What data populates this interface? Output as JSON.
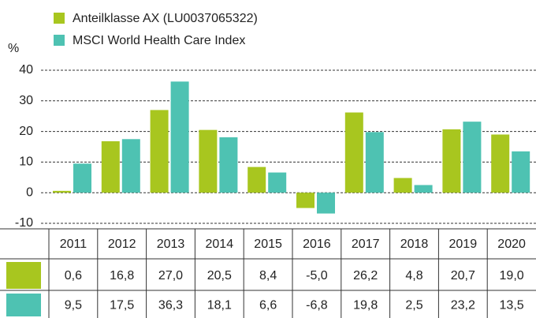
{
  "chart_data": {
    "type": "bar",
    "ylabel": "%",
    "categories": [
      "2011",
      "2012",
      "2013",
      "2014",
      "2015",
      "2016",
      "2017",
      "2018",
      "2019",
      "2020"
    ],
    "series": [
      {
        "name": "Anteilklasse AX (LU0037065322)",
        "color": "#a8c61f",
        "values": [
          0.6,
          16.8,
          27.0,
          20.5,
          8.4,
          -5.0,
          26.2,
          4.8,
          20.7,
          19.0
        ],
        "value_labels": [
          "0,6",
          "16,8",
          "27,0",
          "20,5",
          "8,4",
          "-5,0",
          "26,2",
          "4,8",
          "20,7",
          "19,0"
        ]
      },
      {
        "name": "MSCI World Health Care Index",
        "color": "#4ec2b2",
        "values": [
          9.5,
          17.5,
          36.3,
          18.1,
          6.6,
          -6.8,
          19.8,
          2.5,
          23.2,
          13.5
        ],
        "value_labels": [
          "9,5",
          "17,5",
          "36,3",
          "18,1",
          "6,6",
          "-6,8",
          "19,8",
          "2,5",
          "23,2",
          "13,5"
        ]
      }
    ],
    "ylim": [
      -10,
      40
    ],
    "yticks": [
      -10,
      0,
      10,
      20,
      30,
      40
    ],
    "grid": true
  }
}
